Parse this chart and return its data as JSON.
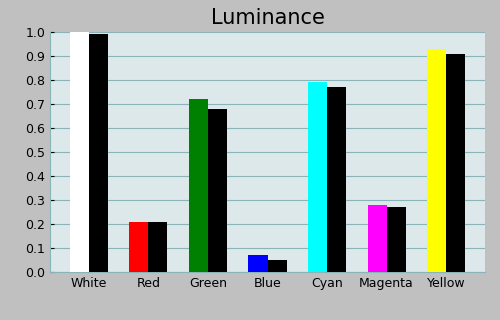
{
  "title": "Luminance",
  "categories": [
    "White",
    "Red",
    "Green",
    "Blue",
    "Cyan",
    "Magenta",
    "Yellow"
  ],
  "measured_values": [
    1.0,
    0.21,
    0.72,
    0.07,
    0.79,
    0.28,
    0.93
  ],
  "reference_values": [
    0.99,
    0.21,
    0.68,
    0.05,
    0.77,
    0.27,
    0.91
  ],
  "bar_colors": [
    "#ffffff",
    "#ff0000",
    "#008000",
    "#0000ff",
    "#00ffff",
    "#ff00ff",
    "#ffff00"
  ],
  "reference_color": "#000000",
  "background_color": "#c0c0c0",
  "plot_bg_color": "#dce8ea",
  "ylim": [
    0.0,
    1.0
  ],
  "yticks": [
    0.0,
    0.1,
    0.2,
    0.3,
    0.4,
    0.5,
    0.6,
    0.7,
    0.8,
    0.9,
    1.0
  ],
  "title_fontsize": 15,
  "tick_fontsize": 9,
  "bar_width": 0.32,
  "grid_color": "#8ab4b8",
  "title_color": "#000000"
}
